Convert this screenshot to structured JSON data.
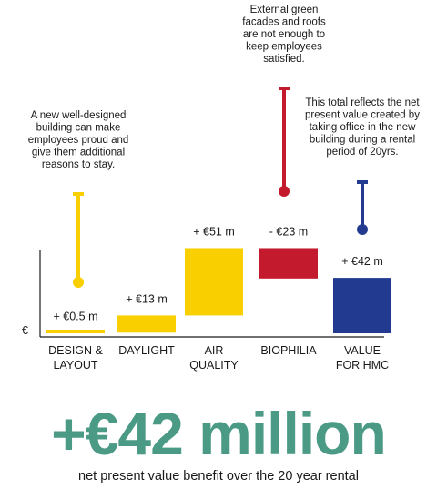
{
  "chart_data": {
    "type": "bar",
    "subtype": "waterfall",
    "y_axis_label": "€",
    "unit": "€ m",
    "categories": [
      {
        "label_lines": [
          "DESIGN &",
          "LAYOUT"
        ],
        "value_label": "+ €0.5 m",
        "delta": 0.5,
        "start": 0,
        "end": 0.5,
        "color": "#f9cf00"
      },
      {
        "label_lines": [
          "DAYLIGHT"
        ],
        "value_label": "+ €13 m",
        "delta": 13,
        "start": 0.5,
        "end": 13.5,
        "color": "#f9cf00"
      },
      {
        "label_lines": [
          "AIR",
          "QUALITY"
        ],
        "value_label": "+ €51 m",
        "delta": 51,
        "start": 13.5,
        "end": 64.5,
        "color": "#f9cf00"
      },
      {
        "label_lines": [
          "BIOPHILIA"
        ],
        "value_label": "- €23 m",
        "delta": -23,
        "start": 64.5,
        "end": 41.5,
        "color": "#c41a2d"
      },
      {
        "label_lines": [
          "VALUE",
          "FOR HMC"
        ],
        "value_label": "+ €42 m",
        "delta": 42,
        "start": 0,
        "end": 42,
        "color": "#223a90",
        "is_total": true
      }
    ],
    "annotations": [
      {
        "category_index": 0,
        "color": "#f9cf00",
        "lines": [
          "A new well-designed",
          "building can make",
          "employees proud and",
          "give them additional",
          "reasons to stay."
        ]
      },
      {
        "category_index": 3,
        "color": "#c41a2d",
        "lines": [
          "External green",
          "facades and roofs",
          "are not enough to",
          "keep employees",
          "satisfied."
        ]
      },
      {
        "category_index": 4,
        "color": "#223a90",
        "lines": [
          "This total reflects the net",
          "present value created by",
          "taking office in the new",
          "building during a rental",
          "period of 20yrs."
        ]
      }
    ]
  },
  "headline": {
    "value": "+€42 million",
    "color": "#4a9a85",
    "subtitle": "net present value benefit over the 20 year rental"
  }
}
